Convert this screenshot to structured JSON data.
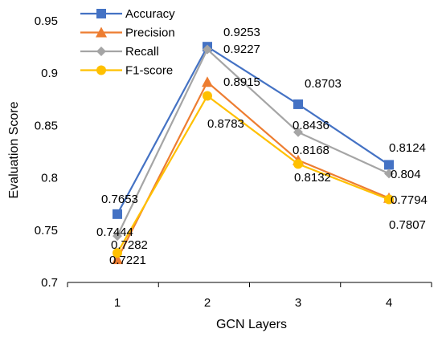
{
  "chart_data": {
    "type": "line",
    "xlabel": "GCN Layers",
    "ylabel": "Evaluation Score",
    "categories": [
      "1",
      "2",
      "3",
      "4"
    ],
    "ylim": [
      0.7,
      0.95
    ],
    "yticks": [
      "0.7",
      "0.75",
      "0.8",
      "0.85",
      "0.9",
      "0.95"
    ],
    "yticks_values": [
      0.7,
      0.75,
      0.8,
      0.85,
      0.9,
      0.95
    ],
    "grid": false,
    "legend_position": "top-left",
    "series": [
      {
        "name": "Accuracy",
        "color": "#4472C4",
        "marker": "square",
        "values": [
          0.7653,
          0.9253,
          0.8703,
          0.8124
        ],
        "labels": [
          "0.7653",
          "0.9253",
          "0.8703",
          "0.8124"
        ]
      },
      {
        "name": "Precision",
        "color": "#ED7D31",
        "marker": "triangle",
        "values": [
          0.7221,
          0.8915,
          0.8168,
          0.7807
        ],
        "labels": [
          "0.7221",
          "0.8915",
          "0.8168",
          "0.7807"
        ]
      },
      {
        "name": "Recall",
        "color": "#A5A5A5",
        "marker": "diamond",
        "values": [
          0.7444,
          0.9227,
          0.8436,
          0.804
        ],
        "labels": [
          "0.7444",
          "0.9227",
          "0.8436",
          "0.804"
        ]
      },
      {
        "name": "F1-score",
        "color": "#FFC000",
        "marker": "circle",
        "values": [
          0.7282,
          0.8783,
          0.8132,
          0.7794
        ],
        "labels": [
          "0.7282",
          "0.8783",
          "0.8132",
          "0.7794"
        ]
      }
    ]
  }
}
